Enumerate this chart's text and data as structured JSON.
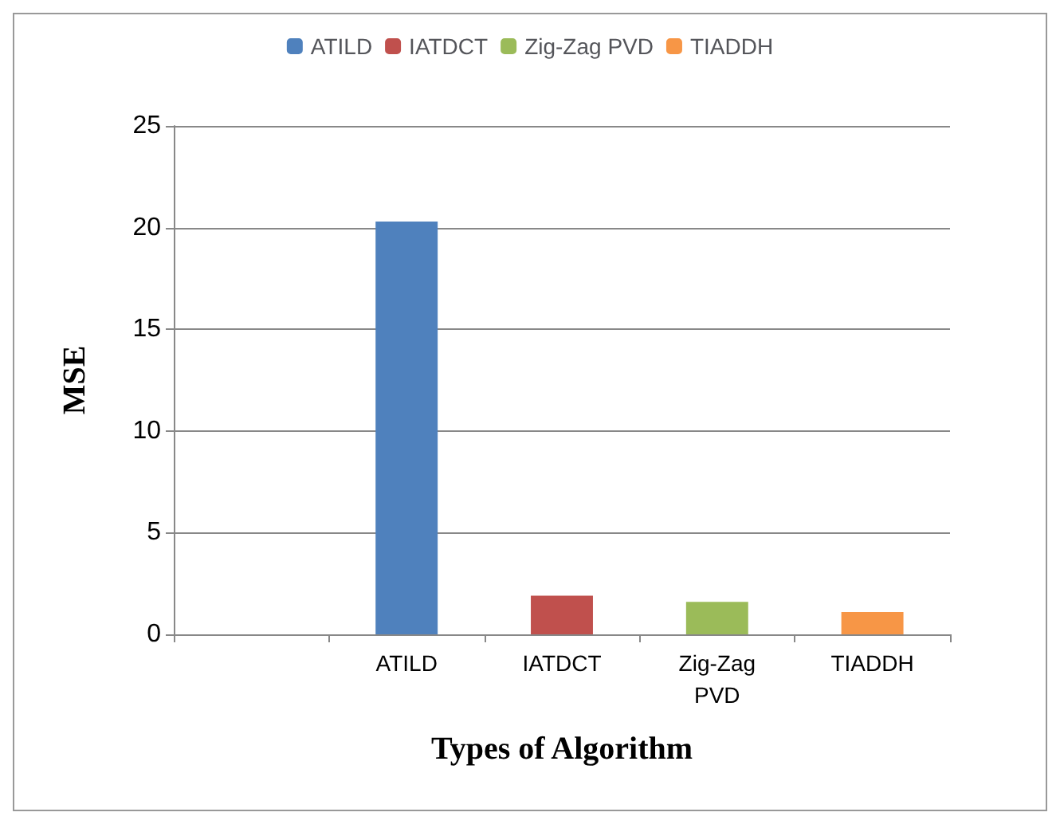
{
  "chart_data": {
    "type": "bar",
    "xlabel": "Types of Algorithm",
    "ylabel": "MSE",
    "categories": [
      null,
      "ATILD",
      "IATDCT",
      "Zig-Zag PVD",
      "TIADDH"
    ],
    "stacked": true,
    "series": [
      {
        "name": "ATILD",
        "color": "#4f81bd",
        "values": [
          null,
          20.3,
          null,
          null,
          null
        ]
      },
      {
        "name": "IATDCT",
        "color": "#c0504d",
        "values": [
          null,
          null,
          1.9,
          null,
          null
        ]
      },
      {
        "name": "Zig-Zag PVD",
        "color": "#9bbb59",
        "values": [
          null,
          null,
          null,
          1.6,
          null
        ]
      },
      {
        "name": "TIADDH",
        "color": "#f79646",
        "values": [
          null,
          null,
          null,
          null,
          1.1
        ]
      }
    ],
    "ylim": [
      0,
      25
    ],
    "yticks": [
      0,
      5,
      10,
      15,
      20,
      25
    ],
    "grid": "y",
    "legend": "top"
  }
}
